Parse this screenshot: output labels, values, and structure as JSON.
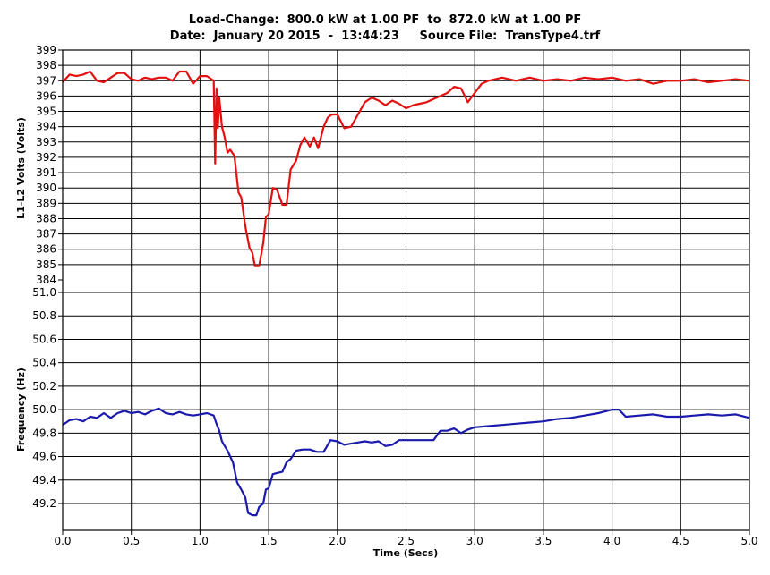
{
  "header": {
    "line1": "Load-Change:  800.0 kW at 1.00 PF  to  872.0 kW at 1.00 PF",
    "line2": "Date:  January 20 2015  -  13:44:23     Source File:  TransType4.trf"
  },
  "chart_data": [
    {
      "type": "line",
      "ylabel": "L1-L2 Volts  (Volts)",
      "xlim": [
        0,
        5
      ],
      "ylim": [
        384,
        399
      ],
      "yticks": [
        "399",
        "398",
        "397",
        "396",
        "395",
        "394",
        "393",
        "392",
        "391",
        "390",
        "389",
        "388",
        "387",
        "386",
        "385",
        "384"
      ],
      "grid": true,
      "color": "#e31010",
      "series": [
        {
          "x": [
            0.0,
            0.05,
            0.1,
            0.15,
            0.2,
            0.25,
            0.3,
            0.35,
            0.4,
            0.45,
            0.5,
            0.55,
            0.6,
            0.65,
            0.7,
            0.75,
            0.8,
            0.85,
            0.9,
            0.95,
            1.0,
            1.05,
            1.1,
            1.11,
            1.12,
            1.13,
            1.14,
            1.16,
            1.18,
            1.2,
            1.22,
            1.25,
            1.28,
            1.3,
            1.33,
            1.36,
            1.38,
            1.4,
            1.43,
            1.46,
            1.48,
            1.5,
            1.53,
            1.56,
            1.58,
            1.6,
            1.63,
            1.66,
            1.68,
            1.7,
            1.73,
            1.76,
            1.8,
            1.83,
            1.86,
            1.9,
            1.93,
            1.96,
            2.0,
            2.05,
            2.1,
            2.15,
            2.2,
            2.25,
            2.3,
            2.35,
            2.4,
            2.45,
            2.5,
            2.55,
            2.6,
            2.65,
            2.7,
            2.75,
            2.8,
            2.85,
            2.9,
            2.95,
            3.0,
            3.05,
            3.1,
            3.2,
            3.3,
            3.4,
            3.5,
            3.6,
            3.7,
            3.8,
            3.9,
            4.0,
            4.1,
            4.2,
            4.3,
            4.4,
            4.5,
            4.6,
            4.7,
            4.8,
            4.9,
            5.0
          ],
          "y": [
            396.9,
            397.4,
            397.3,
            397.4,
            397.6,
            397.0,
            396.9,
            397.2,
            397.5,
            397.5,
            397.1,
            397.0,
            397.2,
            397.1,
            397.2,
            397.2,
            397.0,
            397.6,
            397.6,
            396.8,
            397.3,
            397.3,
            397.0,
            391.6,
            396.5,
            393.9,
            395.9,
            394.0,
            393.3,
            392.3,
            392.5,
            392.1,
            389.7,
            389.4,
            387.5,
            386.1,
            385.8,
            384.9,
            384.9,
            386.4,
            388.1,
            388.3,
            390.0,
            389.9,
            389.4,
            388.9,
            388.9,
            391.2,
            391.5,
            391.8,
            392.8,
            393.3,
            392.7,
            393.3,
            392.6,
            394.0,
            394.6,
            394.8,
            394.8,
            393.9,
            394.0,
            394.8,
            395.6,
            395.9,
            395.7,
            395.4,
            395.7,
            395.5,
            395.2,
            395.4,
            395.5,
            395.6,
            395.8,
            396.0,
            396.2,
            396.6,
            396.5,
            395.6,
            396.2,
            396.8,
            397.0,
            397.2,
            397.0,
            397.2,
            397.0,
            397.1,
            397.0,
            397.2,
            397.1,
            397.2,
            397.0,
            397.1,
            396.8,
            397.0,
            397.0,
            397.1,
            396.9,
            397.0,
            397.1,
            397.0
          ]
        }
      ]
    },
    {
      "type": "line",
      "ylabel": "Frequency  (Hz)",
      "xlabel": "Time  (Secs)",
      "xlim": [
        0,
        5
      ],
      "ylim": [
        49.1,
        51.0
      ],
      "yticks": [
        "51.0",
        "50.8",
        "50.6",
        "50.4",
        "50.2",
        "50.0",
        "49.8",
        "49.6",
        "49.4",
        "49.2"
      ],
      "xticks": [
        "0.0",
        "0.5",
        "1.0",
        "1.5",
        "2.0",
        "2.5",
        "3.0",
        "3.5",
        "4.0",
        "4.5",
        "5.0"
      ],
      "grid": true,
      "color": "#1a1aad",
      "series": [
        {
          "x": [
            0.0,
            0.05,
            0.1,
            0.15,
            0.2,
            0.25,
            0.3,
            0.35,
            0.4,
            0.45,
            0.5,
            0.55,
            0.6,
            0.65,
            0.7,
            0.75,
            0.8,
            0.85,
            0.9,
            0.95,
            1.0,
            1.05,
            1.1,
            1.12,
            1.14,
            1.16,
            1.2,
            1.24,
            1.27,
            1.3,
            1.33,
            1.35,
            1.38,
            1.41,
            1.43,
            1.46,
            1.48,
            1.5,
            1.53,
            1.56,
            1.6,
            1.63,
            1.66,
            1.7,
            1.75,
            1.8,
            1.85,
            1.9,
            1.95,
            2.0,
            2.05,
            2.1,
            2.15,
            2.2,
            2.25,
            2.3,
            2.35,
            2.4,
            2.45,
            2.5,
            2.55,
            2.6,
            2.65,
            2.7,
            2.75,
            2.8,
            2.85,
            2.9,
            2.95,
            3.0,
            3.1,
            3.2,
            3.3,
            3.4,
            3.5,
            3.6,
            3.7,
            3.8,
            3.9,
            4.0,
            4.05,
            4.1,
            4.2,
            4.3,
            4.4,
            4.5,
            4.6,
            4.7,
            4.8,
            4.9,
            5.0
          ],
          "y": [
            49.87,
            49.91,
            49.92,
            49.9,
            49.94,
            49.93,
            49.97,
            49.93,
            49.97,
            49.99,
            49.97,
            49.98,
            49.96,
            49.99,
            50.01,
            49.97,
            49.96,
            49.98,
            49.96,
            49.95,
            49.96,
            49.97,
            49.95,
            49.88,
            49.82,
            49.73,
            49.65,
            49.55,
            49.38,
            49.32,
            49.25,
            49.12,
            49.1,
            49.1,
            49.17,
            49.2,
            49.32,
            49.33,
            49.45,
            49.46,
            49.47,
            49.55,
            49.58,
            49.65,
            49.66,
            49.66,
            49.64,
            49.64,
            49.74,
            49.73,
            49.7,
            49.71,
            49.72,
            49.73,
            49.72,
            49.73,
            49.69,
            49.7,
            49.74,
            49.74,
            49.74,
            49.74,
            49.74,
            49.74,
            49.82,
            49.82,
            49.84,
            49.8,
            49.83,
            49.85,
            49.86,
            49.87,
            49.88,
            49.89,
            49.9,
            49.92,
            49.93,
            49.95,
            49.97,
            50.0,
            50.0,
            49.94,
            49.95,
            49.96,
            49.94,
            49.94,
            49.95,
            49.96,
            49.95,
            49.96,
            49.93
          ]
        }
      ]
    }
  ]
}
